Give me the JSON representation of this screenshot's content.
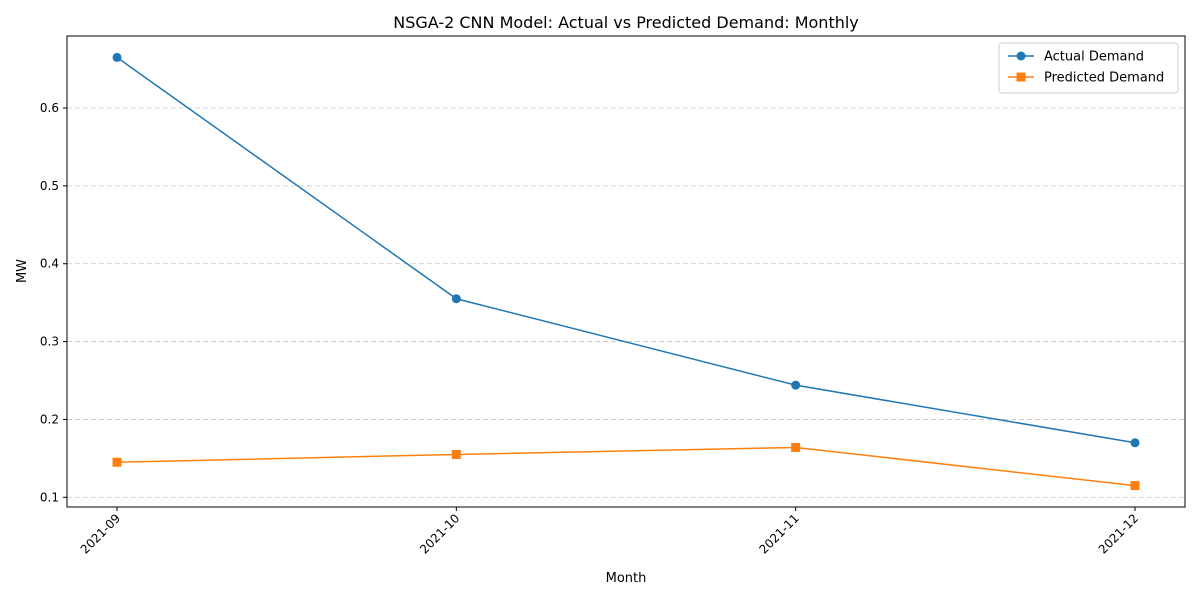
{
  "chart_data": {
    "type": "line",
    "title": "NSGA-2 CNN Model: Actual vs Predicted Demand: Monthly",
    "xlabel": "Month",
    "ylabel": "MW",
    "categories": [
      "2021-09",
      "2021-10",
      "2021-11",
      "2021-12"
    ],
    "y_ticks": [
      0.1,
      0.2,
      0.3,
      0.4,
      0.5,
      0.6
    ],
    "ylim": [
      0.0875,
      0.6925
    ],
    "grid": "y-dashed",
    "legend_position": "top-right",
    "series": [
      {
        "name": "Actual Demand",
        "values": [
          0.665,
          0.355,
          0.244,
          0.17
        ],
        "color": "#1f77b4",
        "marker": "circle"
      },
      {
        "name": "Predicted Demand",
        "values": [
          0.145,
          0.155,
          0.164,
          0.115
        ],
        "color": "#ff7f0e",
        "marker": "square"
      }
    ]
  }
}
